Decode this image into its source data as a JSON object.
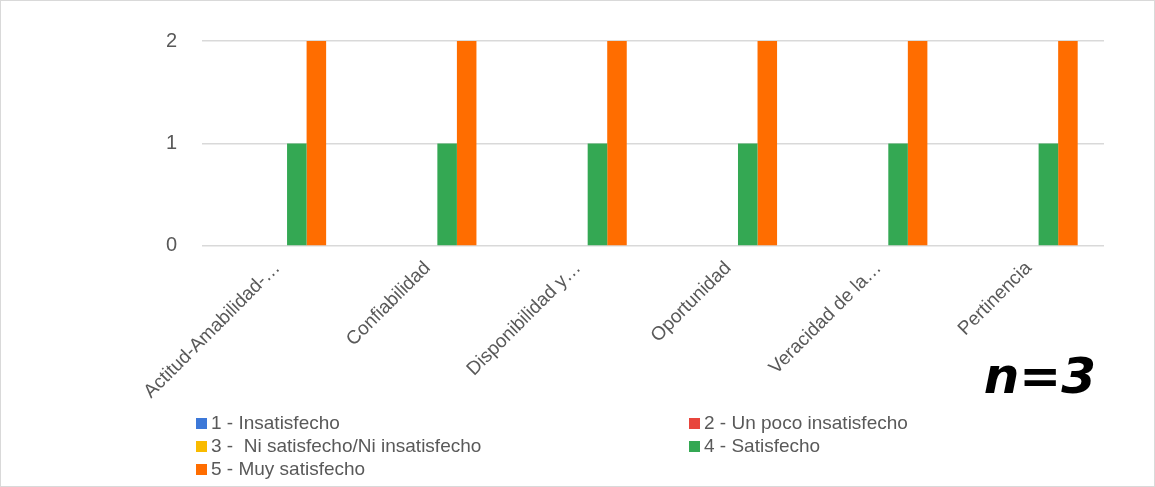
{
  "chart_data": {
    "type": "bar",
    "categories": [
      "Actitud-Amabilidad-…",
      "Confiabilidad",
      "Disponibilidad y…",
      "Oportunidad",
      "Veracidad de la…",
      "Pertinencia"
    ],
    "series": [
      {
        "name": "1 - Insatisfecho",
        "color": "#3c78d8",
        "values": [
          0,
          0,
          0,
          0,
          0,
          0
        ]
      },
      {
        "name": "2 - Un poco insatisfecho",
        "color": "#e8453c",
        "values": [
          0,
          0,
          0,
          0,
          0,
          0
        ]
      },
      {
        "name": "3 -  Ni satisfecho/Ni insatisfecho",
        "color": "#f9bb00",
        "values": [
          0,
          0,
          0,
          0,
          0,
          0
        ]
      },
      {
        "name": "4 - Satisfecho",
        "color": "#34a853",
        "values": [
          1,
          1,
          1,
          1,
          1,
          1
        ]
      },
      {
        "name": "5 - Muy satisfecho",
        "color": "#ff6d00",
        "values": [
          2,
          2,
          2,
          2,
          2,
          2
        ]
      }
    ],
    "ylim": [
      0,
      2
    ],
    "yticks": [
      0,
      1,
      2
    ],
    "grid": "y",
    "legend": "bottom",
    "annotations": [
      "n=3"
    ]
  }
}
